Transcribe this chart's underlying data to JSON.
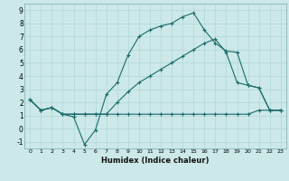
{
  "bg_color": "#cce8e8",
  "grid_color": "#aacccc",
  "line_color": "#1a6b6b",
  "xlim": [
    -0.5,
    23.5
  ],
  "ylim": [
    -1.5,
    9.5
  ],
  "xticks": [
    0,
    1,
    2,
    3,
    4,
    5,
    6,
    7,
    8,
    9,
    10,
    11,
    12,
    13,
    14,
    15,
    16,
    17,
    18,
    19,
    20,
    21,
    22,
    23
  ],
  "yticks": [
    -1,
    0,
    1,
    2,
    3,
    4,
    5,
    6,
    7,
    8,
    9
  ],
  "xlabel": "Humidex (Indice chaleur)",
  "line_top_x": [
    0,
    1,
    2,
    3,
    4,
    5,
    6,
    7,
    8,
    9,
    10,
    11,
    12,
    13,
    14,
    15,
    16,
    17,
    18,
    19,
    20,
    21,
    22,
    23
  ],
  "line_top_y": [
    2.2,
    1.4,
    1.6,
    1.1,
    0.9,
    -1.2,
    -0.1,
    2.6,
    3.5,
    5.6,
    7.0,
    7.5,
    7.8,
    8.0,
    8.5,
    8.8,
    7.5,
    6.5,
    5.9,
    5.8,
    3.3,
    3.1,
    1.4,
    1.4
  ],
  "line_mid_x": [
    0,
    1,
    2,
    3,
    4,
    5,
    6,
    7,
    8,
    9,
    10,
    11,
    12,
    13,
    14,
    15,
    16,
    17,
    18,
    19,
    20,
    21,
    22,
    23
  ],
  "line_mid_y": [
    2.2,
    1.4,
    1.6,
    1.1,
    1.1,
    1.1,
    1.1,
    1.1,
    2.0,
    2.8,
    3.5,
    4.0,
    4.5,
    5.0,
    5.5,
    6.0,
    6.5,
    6.8,
    5.8,
    3.5,
    3.3,
    3.1,
    1.4,
    1.4
  ],
  "line_bot_x": [
    0,
    1,
    2,
    3,
    4,
    5,
    6,
    7,
    8,
    9,
    10,
    11,
    12,
    13,
    14,
    15,
    16,
    17,
    18,
    19,
    20,
    21,
    22,
    23
  ],
  "line_bot_y": [
    2.2,
    1.4,
    1.6,
    1.1,
    1.1,
    1.1,
    1.1,
    1.1,
    1.1,
    1.1,
    1.1,
    1.1,
    1.1,
    1.1,
    1.1,
    1.1,
    1.1,
    1.1,
    1.1,
    1.1,
    1.1,
    1.4,
    1.4,
    1.4
  ]
}
